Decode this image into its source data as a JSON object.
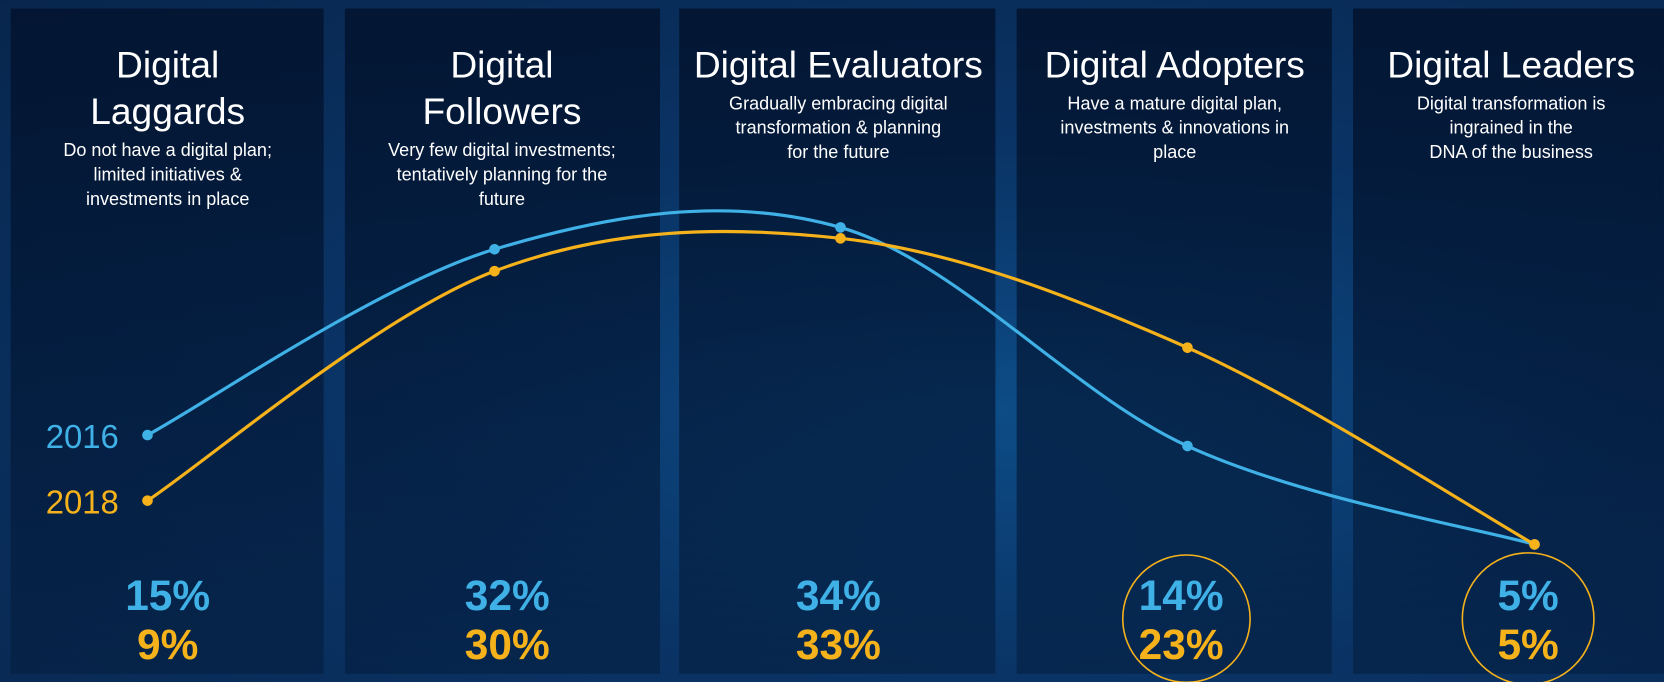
{
  "chart_data": {
    "type": "line",
    "categories": [
      "Digital\nLaggards",
      "Digital\nFollowers",
      "Digital Evaluators",
      "Digital Adopters",
      "Digital Leaders"
    ],
    "descriptions": [
      "Do not have a digital plan;\nlimited  initiatives &\ninvestments in place",
      "Very few digital investments;\ntentatively planning for the\nfuture",
      "Gradually embracing digital\ntransformation & planning\nfor the future",
      "Have a mature digital plan,\ninvestments & innovations in\nplace",
      "Digital transformation is\ningrained in the\nDNA of the business"
    ],
    "series": [
      {
        "name": "2016",
        "color": "#3fb1e6",
        "values": [
          15,
          32,
          34,
          14,
          5
        ],
        "value_labels": [
          "15%",
          "32%",
          "34%",
          "14%",
          "5%"
        ]
      },
      {
        "name": "2018",
        "color": "#f6b21b",
        "values": [
          9,
          30,
          33,
          23,
          5
        ],
        "value_labels": [
          "9%",
          "30%",
          "33%",
          "23%",
          "5%"
        ]
      }
    ]
  }
}
